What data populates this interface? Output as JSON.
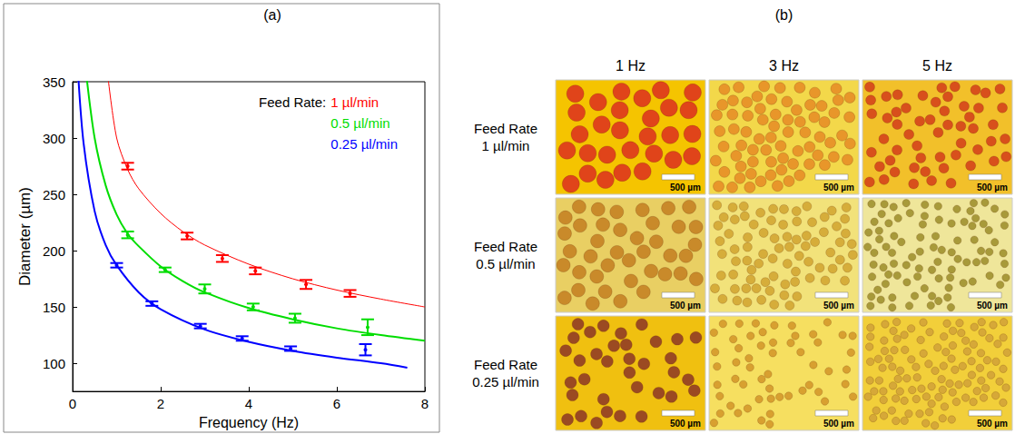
{
  "chart_data": {
    "type": "scatter",
    "title": "(a)",
    "x_label": "Frequency (Hz)",
    "y_label": "Diameter (µm)",
    "legend_title": "Feed Rate:",
    "legend": "upper right",
    "grid": false,
    "xlim": [
      0,
      8
    ],
    "xticks": [
      0,
      2,
      4,
      6,
      8
    ],
    "ylim": [
      75,
      350
    ],
    "yticks": [
      100,
      150,
      200,
      250,
      300,
      350
    ],
    "series": [
      {
        "name": "1 µl/min",
        "color": "#ff0000",
        "x": [
          1.25,
          2.6,
          3.4,
          4.15,
          5.3,
          6.3
        ],
        "values": [
          275,
          213,
          193,
          182,
          170,
          162
        ],
        "errors": [
          3,
          3,
          3,
          3,
          4,
          3
        ],
        "fit_x": [
          0.8,
          1,
          1.25,
          1.5,
          2,
          2.5,
          3,
          4,
          5,
          6,
          7,
          8
        ],
        "fit_values": [
          355,
          300,
          272,
          255,
          233,
          217,
          205,
          188,
          175,
          165,
          157,
          150
        ]
      },
      {
        "name": "0.5 µl/min",
        "color": "#00dd00",
        "x": [
          1.25,
          2.1,
          3.0,
          4.1,
          5.05,
          6.7
        ],
        "values": [
          214,
          183,
          166,
          150,
          140,
          132
        ],
        "errors": [
          3,
          2,
          4,
          3,
          4,
          7
        ],
        "fit_x": [
          0.3,
          0.5,
          0.75,
          1,
          1.25,
          1.5,
          2,
          2.5,
          3,
          4,
          5,
          6,
          7,
          8
        ],
        "fit_values": [
          360,
          300,
          258,
          232,
          215,
          204,
          186,
          173,
          163,
          149,
          139,
          131,
          125,
          120
        ]
      },
      {
        "name": "0.25 µl/min",
        "color": "#0000ff",
        "x": [
          1.0,
          1.8,
          2.9,
          3.85,
          4.95,
          6.65
        ],
        "values": [
          187,
          153,
          133,
          122,
          113,
          112
        ],
        "errors": [
          2,
          2,
          2,
          2,
          2,
          5
        ],
        "fit_x": [
          0.12,
          0.25,
          0.5,
          0.75,
          1,
          1.5,
          2,
          3,
          4,
          5,
          6,
          7,
          7.6
        ],
        "fit_values": [
          360,
          295,
          235,
          205,
          187,
          163,
          148,
          130,
          119,
          111,
          105,
          100,
          96
        ]
      }
    ]
  },
  "panel_b": {
    "title": "(b)",
    "columns": [
      "1 Hz",
      "3 Hz",
      "5 Hz"
    ],
    "rows": [
      "Feed Rate 1 µl/min",
      "Feed Rate 0.5 µl/min",
      "Feed Rate 0.25 µl/min"
    ],
    "scale_bar": "500 µm"
  }
}
